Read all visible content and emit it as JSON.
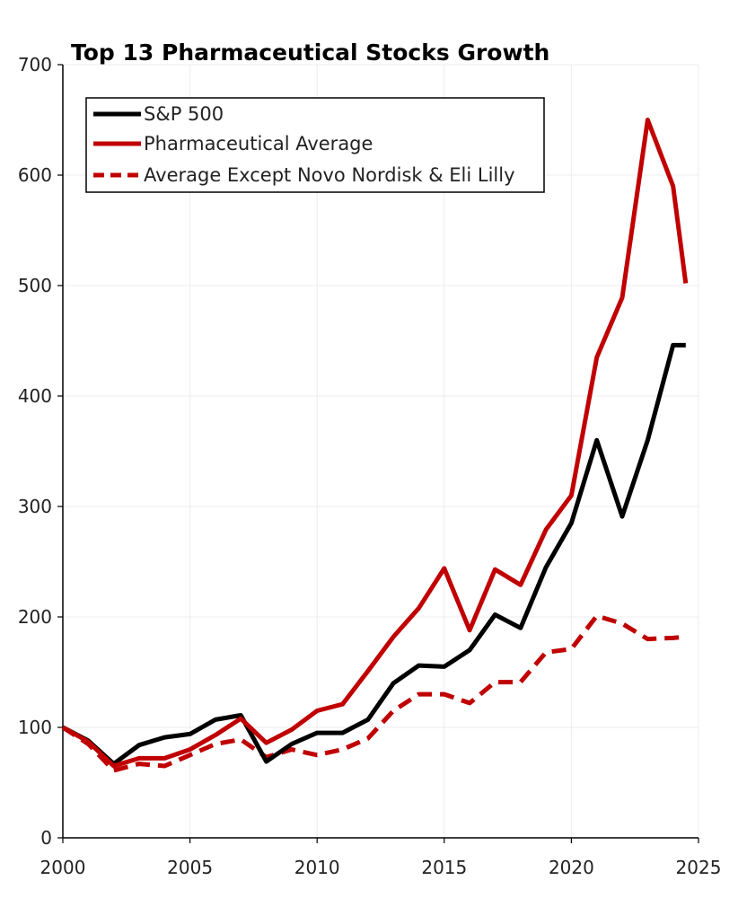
{
  "chart_data": {
    "type": "line",
    "title": "Top 13 Pharmaceutical Stocks Growth",
    "xlabel": "",
    "ylabel": "",
    "xlim": [
      2000,
      2025
    ],
    "ylim": [
      0,
      700
    ],
    "xticks": [
      "2000",
      "2005",
      "2010",
      "2015",
      "2020",
      "2025"
    ],
    "yticks": [
      "0",
      "100",
      "200",
      "300",
      "400",
      "500",
      "600",
      "700"
    ],
    "grid": true,
    "legend_position": "top-left",
    "series": [
      {
        "name": "S&P 500",
        "color": "#000000",
        "dash": "solid",
        "x": [
          2000,
          2001,
          2002,
          2003,
          2004,
          2005,
          2006,
          2007,
          2008,
          2009,
          2010,
          2011,
          2012,
          2013,
          2014,
          2015,
          2016,
          2017,
          2018,
          2019,
          2020,
          2021,
          2022,
          2023,
          2024,
          2024.5
        ],
        "values": [
          100,
          88,
          67,
          84,
          91,
          94,
          107,
          111,
          69,
          85,
          95,
          95,
          107,
          140,
          156,
          155,
          170,
          202,
          190,
          245,
          285,
          360,
          291,
          360,
          446,
          446
        ]
      },
      {
        "name": "Pharmaceutical Average",
        "color": "#c00000",
        "dash": "solid",
        "x": [
          2000,
          2001,
          2002,
          2003,
          2004,
          2005,
          2006,
          2007,
          2008,
          2009,
          2010,
          2011,
          2012,
          2013,
          2014,
          2015,
          2016,
          2017,
          2018,
          2019,
          2020,
          2021,
          2022,
          2023,
          2024,
          2024.5
        ],
        "values": [
          100,
          87,
          65,
          72,
          72,
          80,
          93,
          108,
          86,
          98,
          115,
          121,
          151,
          182,
          208,
          244,
          188,
          243,
          229,
          279,
          310,
          435,
          489,
          650,
          590,
          502
        ]
      },
      {
        "name": "Average Except Novo Nordisk & Eli Lilly",
        "color": "#c00000",
        "dash": "dashed",
        "x": [
          2000,
          2001,
          2002,
          2003,
          2004,
          2005,
          2006,
          2007,
          2008,
          2009,
          2010,
          2011,
          2012,
          2013,
          2014,
          2015,
          2016,
          2017,
          2018,
          2019,
          2020,
          2021,
          2022,
          2023,
          2024,
          2024.5
        ],
        "values": [
          100,
          85,
          61,
          67,
          65,
          75,
          85,
          89,
          73,
          80,
          75,
          80,
          90,
          115,
          130,
          130,
          122,
          141,
          141,
          168,
          171,
          201,
          194,
          180,
          181,
          182
        ]
      }
    ]
  }
}
